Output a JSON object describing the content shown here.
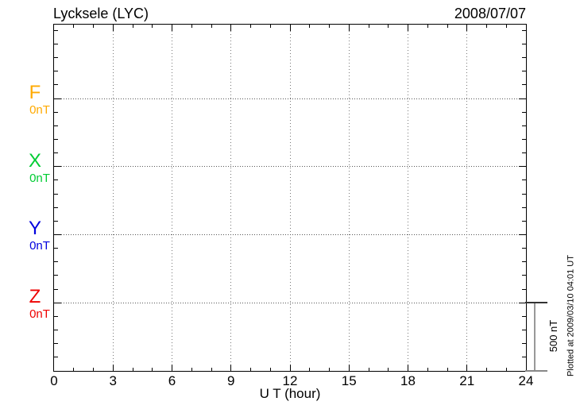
{
  "chart_data": {
    "type": "line",
    "title": "Lycksele (LYC)",
    "date_label": "2008/07/07",
    "xlabel": "U T (hour)",
    "xlim": [
      0,
      24
    ],
    "x_tick_labels": [
      "0",
      "3",
      "6",
      "9",
      "12",
      "15",
      "18",
      "21",
      "24"
    ],
    "x_tick_hours": [
      0,
      3,
      6,
      9,
      12,
      15,
      18,
      21,
      24
    ],
    "x_minor_tick_step_hours": 1,
    "x_grid_hours": [
      3,
      6,
      9,
      12,
      15,
      18,
      21
    ],
    "grid_style": "dotted",
    "components": [
      {
        "name": "F",
        "offset_label": "0nT",
        "color": "#FFAA00"
      },
      {
        "name": "X",
        "offset_label": "0nT",
        "color": "#00CC33"
      },
      {
        "name": "Y",
        "offset_label": "0nT",
        "color": "#0000DD"
      },
      {
        "name": "Z",
        "offset_label": "0nT",
        "color": "#EE0000"
      }
    ],
    "row_spacing_nT": 500,
    "y_minor_tick_step_nT": 100,
    "series": [
      {
        "name": "F",
        "x": [],
        "values": []
      },
      {
        "name": "X",
        "x": [],
        "values": []
      },
      {
        "name": "Y",
        "x": [],
        "values": []
      },
      {
        "name": "Z",
        "x": [],
        "values": []
      }
    ],
    "no_data_plotted": true,
    "scale_bar": {
      "label": "500 nT",
      "value_nT": 500
    },
    "plotted_at_note": "Plotted at 2009/03/10 04:01 UT",
    "colors": {
      "axis": "#000000",
      "grid_dots": "#666666",
      "scale_bar": "#999999"
    }
  }
}
